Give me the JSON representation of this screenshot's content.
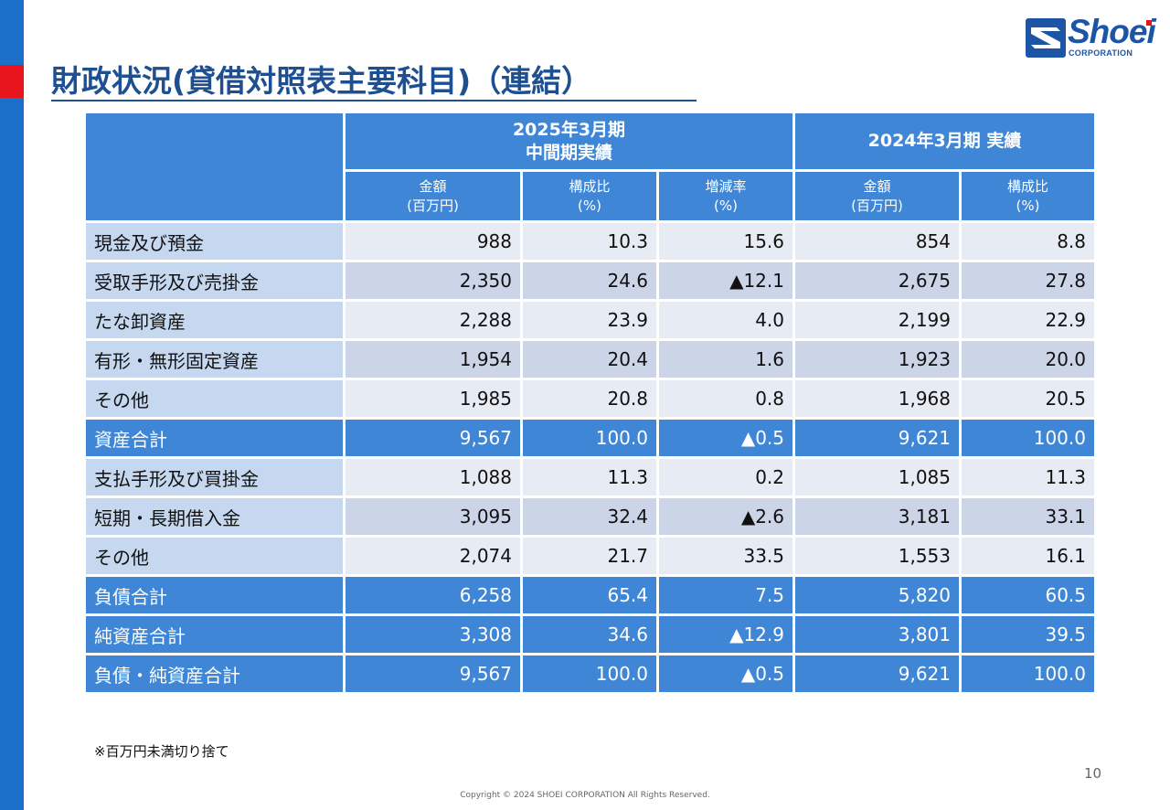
{
  "title": "財政状況(貸借対照表主要科目)（連結）",
  "logo": {
    "name": "Shoei",
    "sub": "CORPORATION"
  },
  "table": {
    "group_current": [
      "2025年3月期",
      "中間期実績"
    ],
    "group_prior": "2024年3月期 実績",
    "subheaders": [
      [
        "金額",
        "(百万円)"
      ],
      [
        "構成比",
        "(%)"
      ],
      [
        "増減率",
        "(%)"
      ],
      [
        "金額",
        "(百万円)"
      ],
      [
        "構成比",
        "(%)"
      ]
    ],
    "rows": [
      {
        "label": "現金及び預金",
        "cells": [
          "988",
          "10.3",
          "15.6",
          "854",
          "8.8"
        ],
        "total": false
      },
      {
        "label": "受取手形及び売掛金",
        "cells": [
          "2,350",
          "24.6",
          "▲12.1",
          "2,675",
          "27.8"
        ],
        "total": false
      },
      {
        "label": "たな卸資産",
        "cells": [
          "2,288",
          "23.9",
          "4.0",
          "2,199",
          "22.9"
        ],
        "total": false
      },
      {
        "label": "有形・無形固定資産",
        "cells": [
          "1,954",
          "20.4",
          "1.6",
          "1,923",
          "20.0"
        ],
        "total": false
      },
      {
        "label": "その他",
        "cells": [
          "1,985",
          "20.8",
          "0.8",
          "1,968",
          "20.5"
        ],
        "total": false
      },
      {
        "label": "資産合計",
        "cells": [
          "9,567",
          "100.0",
          "▲0.5",
          "9,621",
          "100.0"
        ],
        "total": true
      },
      {
        "label": "支払手形及び買掛金",
        "cells": [
          "1,088",
          "11.3",
          "0.2",
          "1,085",
          "11.3"
        ],
        "total": false
      },
      {
        "label": "短期・長期借入金",
        "cells": [
          "3,095",
          "32.4",
          "▲2.6",
          "3,181",
          "33.1"
        ],
        "total": false
      },
      {
        "label": "その他",
        "cells": [
          "2,074",
          "21.7",
          "33.5",
          "1,553",
          "16.1"
        ],
        "total": false
      },
      {
        "label": "負債合計",
        "cells": [
          "6,258",
          "65.4",
          "7.5",
          "5,820",
          "60.5"
        ],
        "total": true
      },
      {
        "label": "純資産合計",
        "cells": [
          "3,308",
          "34.6",
          "▲12.9",
          "3,801",
          "39.5"
        ],
        "total": true
      },
      {
        "label": "負債・純資産合計",
        "cells": [
          "9,567",
          "100.0",
          "▲0.5",
          "9,621",
          "100.0"
        ],
        "total": true
      }
    ]
  },
  "note": "※百万円未満切り捨て",
  "page_number": "10",
  "copyright": "Copyright © 2024 SHOEI CORPORATION All Rights Reserved.",
  "colors": {
    "brand_blue": "#1b6fc8",
    "accent_red": "#e8141c",
    "header_blue": "#3f87d6",
    "title_blue": "#1d4f91"
  }
}
